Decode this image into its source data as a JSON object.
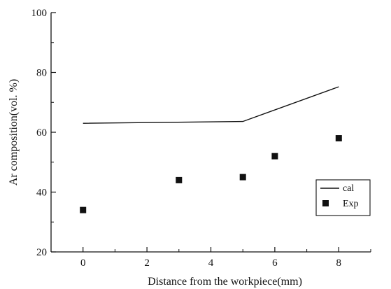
{
  "chart_data": {
    "type": "line",
    "title": "",
    "xlabel": "Distance from the workpiece(mm)",
    "ylabel": "Ar composition(vol. %)",
    "xlim": [
      -1,
      9
    ],
    "ylim": [
      20,
      100
    ],
    "xticks": [
      0,
      2,
      4,
      6,
      8
    ],
    "yticks": [
      20,
      40,
      60,
      80,
      100
    ],
    "grid": false,
    "legend_position": "right",
    "series": [
      {
        "name": "cal",
        "kind": "line",
        "x": [
          0,
          5,
          8
        ],
        "y": [
          63,
          63.6,
          75.2
        ]
      },
      {
        "name": "Exp",
        "kind": "scatter",
        "marker": "square",
        "x": [
          0,
          3,
          5,
          6,
          8
        ],
        "y": [
          34,
          44,
          45,
          52,
          58
        ]
      }
    ]
  }
}
